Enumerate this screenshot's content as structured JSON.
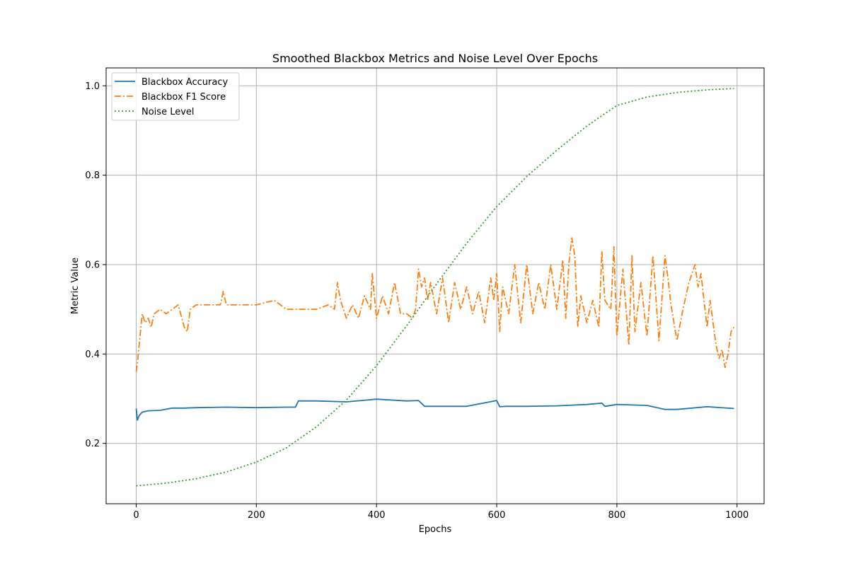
{
  "chart_data": {
    "type": "line",
    "title": "Smoothed Blackbox Metrics and Noise Level Over Epochs",
    "xlabel": "Epochs",
    "ylabel": "Metric Value",
    "xlim": [
      -50,
      1045
    ],
    "ylim": [
      0.065,
      1.04
    ],
    "x_ticks": [
      0,
      200,
      400,
      600,
      800,
      1000
    ],
    "y_ticks": [
      0.2,
      0.4,
      0.6,
      0.8,
      1.0
    ],
    "x_tick_labels": [
      "0",
      "200",
      "400",
      "600",
      "800",
      "1000"
    ],
    "y_tick_labels": [
      "0.2",
      "0.4",
      "0.6",
      "0.8",
      "1.0"
    ],
    "grid": true,
    "legend_position": "upper-left",
    "series": [
      {
        "name": "Blackbox Accuracy",
        "color": "#1f77b4",
        "style": "solid",
        "x": [
          0,
          2,
          5,
          10,
          20,
          40,
          60,
          80,
          100,
          150,
          200,
          250,
          265,
          270,
          300,
          350,
          400,
          450,
          470,
          480,
          500,
          550,
          600,
          605,
          615,
          650,
          700,
          750,
          775,
          780,
          800,
          850,
          880,
          900,
          950,
          995
        ],
        "y": [
          0.278,
          0.252,
          0.262,
          0.27,
          0.273,
          0.274,
          0.279,
          0.279,
          0.28,
          0.281,
          0.28,
          0.281,
          0.281,
          0.295,
          0.295,
          0.293,
          0.299,
          0.295,
          0.296,
          0.283,
          0.283,
          0.283,
          0.296,
          0.282,
          0.283,
          0.283,
          0.284,
          0.287,
          0.29,
          0.283,
          0.287,
          0.285,
          0.276,
          0.276,
          0.282,
          0.278
        ]
      },
      {
        "name": "Blackbox F1 Score",
        "color": "#ff7f0e",
        "style": "dashdot",
        "x": [
          0,
          2,
          5,
          10,
          15,
          20,
          25,
          30,
          40,
          50,
          60,
          70,
          80,
          85,
          90,
          100,
          120,
          140,
          145,
          150,
          170,
          200,
          230,
          250,
          270,
          300,
          320,
          330,
          335,
          340,
          350,
          360,
          370,
          380,
          390,
          393,
          400,
          410,
          420,
          430,
          440,
          450,
          460,
          465,
          470,
          475,
          480,
          485,
          490,
          500,
          510,
          520,
          530,
          540,
          550,
          560,
          570,
          580,
          590,
          595,
          600,
          605,
          610,
          620,
          630,
          640,
          650,
          660,
          670,
          680,
          690,
          700,
          710,
          715,
          720,
          725,
          730,
          735,
          740,
          750,
          760,
          770,
          775,
          780,
          790,
          795,
          800,
          810,
          820,
          825,
          830,
          840,
          850,
          860,
          870,
          880,
          885,
          890,
          900,
          910,
          920,
          930,
          935,
          940,
          950,
          955,
          960,
          965,
          970,
          975,
          980,
          985,
          990,
          995
        ],
        "y": [
          0.36,
          0.38,
          0.42,
          0.49,
          0.47,
          0.48,
          0.46,
          0.49,
          0.5,
          0.49,
          0.5,
          0.51,
          0.46,
          0.45,
          0.5,
          0.51,
          0.51,
          0.51,
          0.54,
          0.51,
          0.51,
          0.51,
          0.52,
          0.5,
          0.5,
          0.5,
          0.51,
          0.5,
          0.56,
          0.52,
          0.48,
          0.51,
          0.48,
          0.53,
          0.5,
          0.58,
          0.48,
          0.53,
          0.49,
          0.56,
          0.49,
          0.49,
          0.48,
          0.5,
          0.59,
          0.55,
          0.57,
          0.52,
          0.56,
          0.49,
          0.57,
          0.47,
          0.56,
          0.5,
          0.55,
          0.49,
          0.54,
          0.47,
          0.57,
          0.52,
          0.58,
          0.45,
          0.55,
          0.49,
          0.6,
          0.47,
          0.6,
          0.49,
          0.56,
          0.5,
          0.6,
          0.5,
          0.61,
          0.48,
          0.6,
          0.66,
          0.62,
          0.46,
          0.53,
          0.47,
          0.52,
          0.46,
          0.63,
          0.52,
          0.5,
          0.64,
          0.44,
          0.59,
          0.42,
          0.62,
          0.45,
          0.56,
          0.44,
          0.62,
          0.43,
          0.62,
          0.57,
          0.51,
          0.43,
          0.5,
          0.56,
          0.6,
          0.55,
          0.58,
          0.46,
          0.52,
          0.47,
          0.42,
          0.39,
          0.41,
          0.37,
          0.4,
          0.45,
          0.46
        ]
      },
      {
        "name": "Noise Level",
        "color": "#2ca02c",
        "style": "dotted",
        "x": [
          0,
          50,
          100,
          150,
          200,
          250,
          300,
          350,
          400,
          450,
          500,
          550,
          600,
          650,
          700,
          750,
          800,
          850,
          900,
          950,
          995
        ],
        "y": [
          0.105,
          0.111,
          0.121,
          0.136,
          0.158,
          0.19,
          0.237,
          0.297,
          0.374,
          0.463,
          0.557,
          0.648,
          0.73,
          0.797,
          0.856,
          0.91,
          0.956,
          0.975,
          0.985,
          0.991,
          0.994
        ]
      }
    ]
  }
}
